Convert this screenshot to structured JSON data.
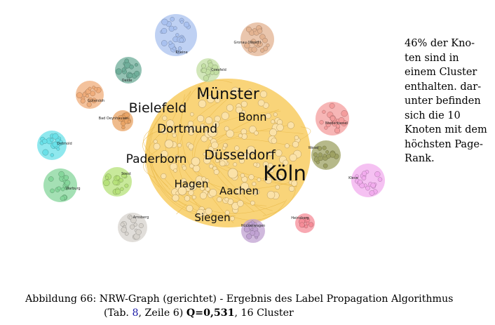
{
  "side_note": {
    "lines": [
      "46% der Kno-",
      "ten sind in",
      "einem Cluster",
      "enthalten. dar-",
      "unter befinden",
      "sich die 10",
      "Knoten mit dem",
      "höchsten Page-",
      "Rank."
    ]
  },
  "caption": {
    "line1": "Abbildung 66: NRW-Graph (gerichtet) - Ergebnis des Label Propagation Algorithmus",
    "line2_prefix": "(Tab. ",
    "table_ref": "8",
    "line2_middle": ", Zeile 6) ",
    "q_value": "Q=0,531",
    "line2_suffix": ", 16 Cluster"
  },
  "graph": {
    "main_cluster": {
      "color": "#f8cf6a",
      "labels": [
        "Münster",
        "Bielefeld",
        "Bonn",
        "Dortmund",
        "Düsseldorf",
        "Paderborn",
        "Köln",
        "Hagen",
        "Aachen",
        "Siegen"
      ]
    },
    "clusters": [
      {
        "label": "Rheine",
        "color": "#a9c1ef"
      },
      {
        "label": "Gronau (Westf.)",
        "color": "#e3b391"
      },
      {
        "label": "Coesfeld",
        "color": "#c3dfa3"
      },
      {
        "label": "Oelde",
        "color": "#6fae9a"
      },
      {
        "label": "Gütersloh",
        "color": "#f0ad7b"
      },
      {
        "label": "Bad Oeynhausen",
        "color": "#e9a466"
      },
      {
        "label": "Detmold",
        "color": "#69e0e8"
      },
      {
        "label": "Soest",
        "color": "#b6e17a"
      },
      {
        "label": "Warburg",
        "color": "#85d69b"
      },
      {
        "label": "Arnsberg",
        "color": "#d7d3cd"
      },
      {
        "label": "Hückeswagen",
        "color": "#c0a2d2"
      },
      {
        "label": "Heinsberg",
        "color": "#f58c98"
      },
      {
        "label": "Niederkassel",
        "color": "#f49d9d"
      },
      {
        "label": "Wesel",
        "color": "#9ea163"
      },
      {
        "label": "Kleve",
        "color": "#f2acee"
      }
    ]
  }
}
